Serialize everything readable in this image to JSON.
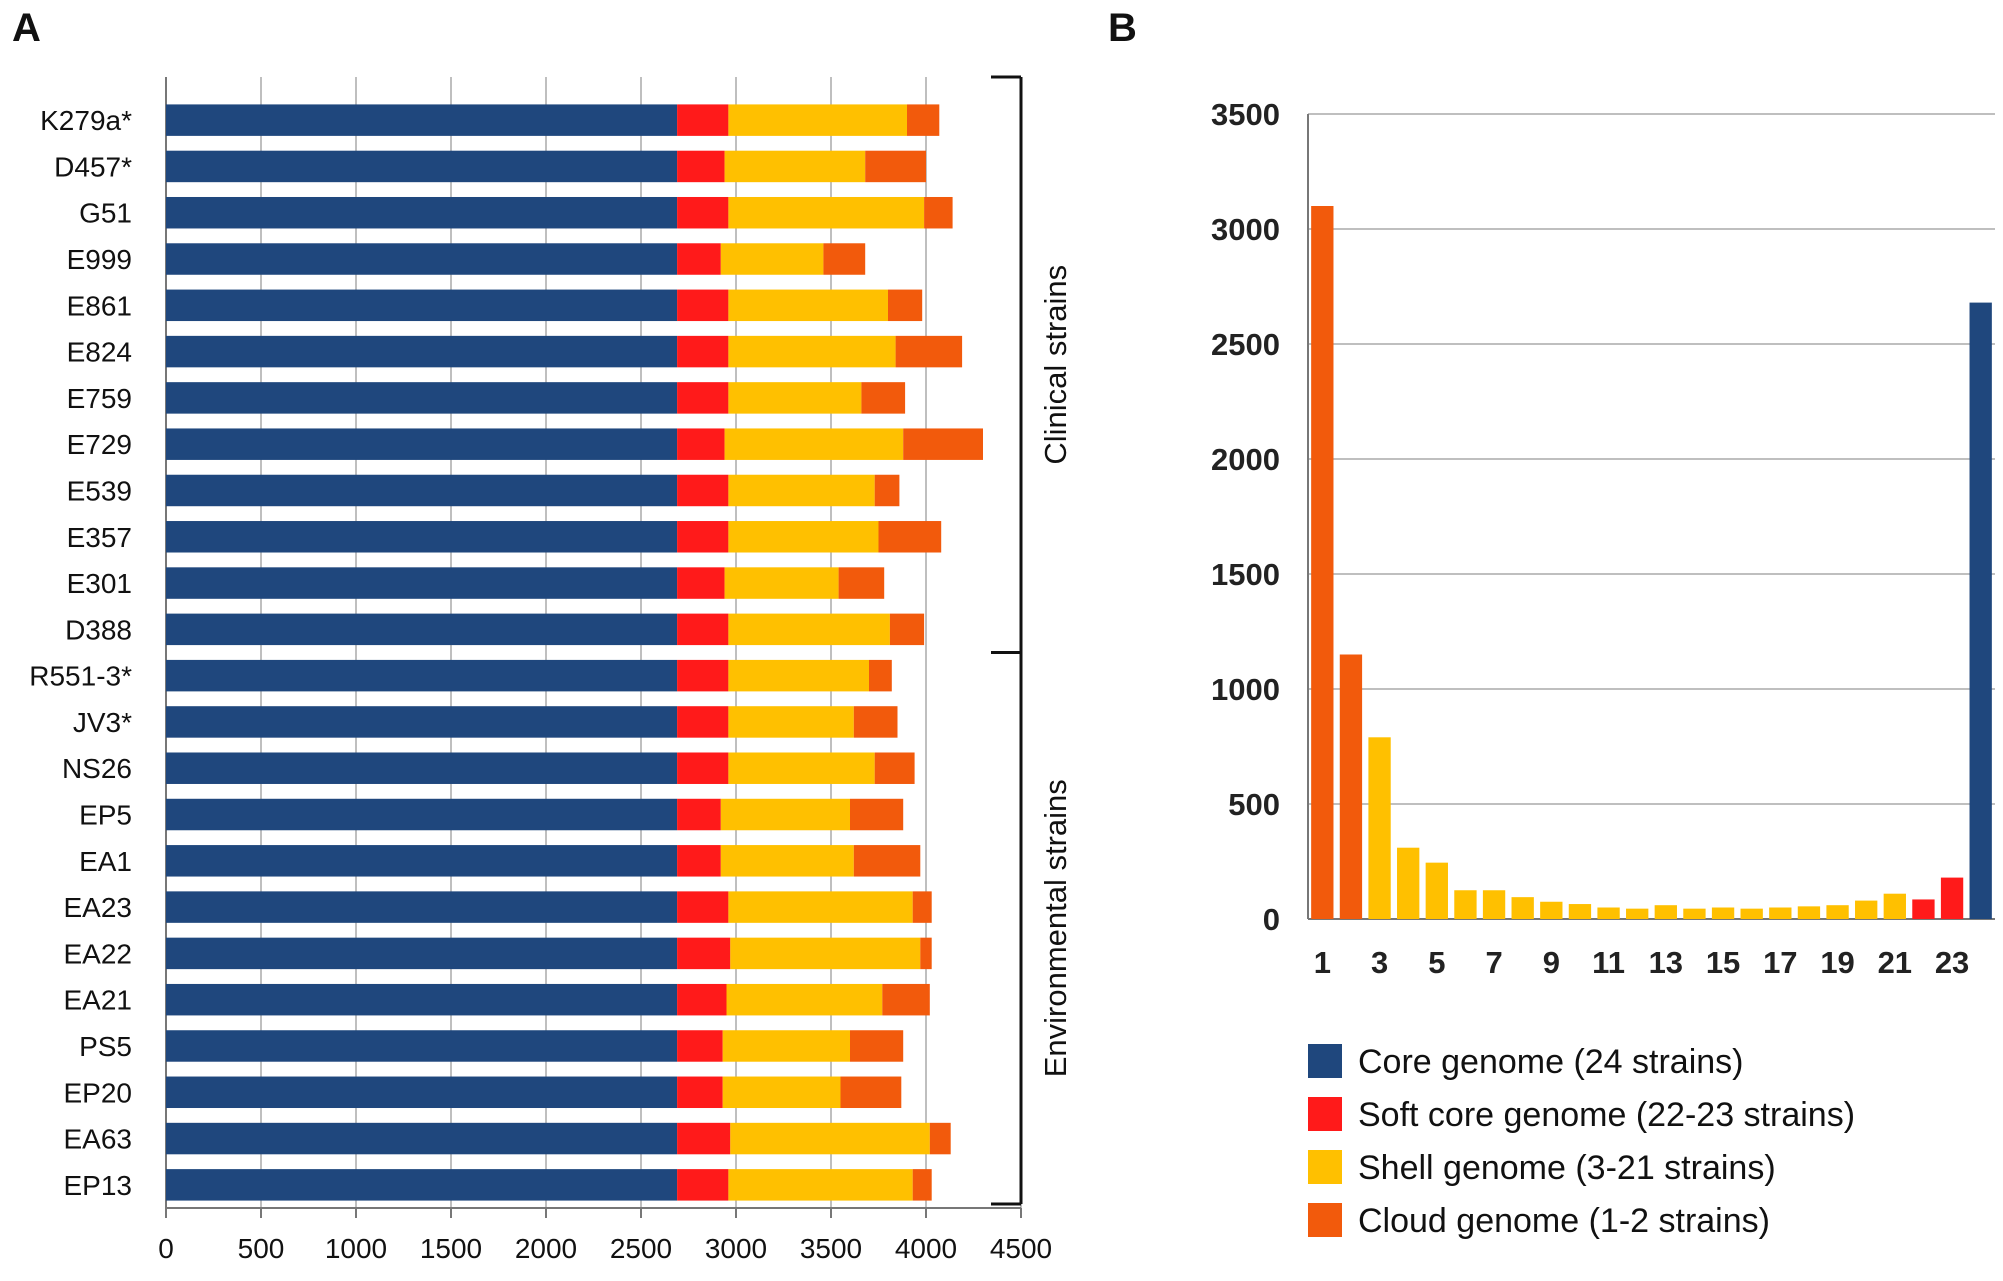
{
  "panels": {
    "a_label": "A",
    "b_label": "B"
  },
  "colors": {
    "core": "#1f477d",
    "soft_core": "#ff1a1a",
    "shell": "#ffc000",
    "cloud": "#f25a0c",
    "grid": "#bfbfbf",
    "axis": "#777777"
  },
  "chart_data": [
    {
      "panel": "A",
      "type": "bar",
      "orientation": "horizontal",
      "stacked": true,
      "categories": [
        "K279a*",
        "D457*",
        "G51",
        "E999",
        "E861",
        "E824",
        "E759",
        "E729",
        "E539",
        "E357",
        "E301",
        "D388",
        "R551-3*",
        "JV3*",
        "NS26",
        "EP5",
        "EA1",
        "EA23",
        "EA22",
        "EA21",
        "PS5",
        "EP20",
        "EA63",
        "EP13"
      ],
      "series": [
        {
          "name": "Core genome (24 strains)",
          "values": [
            2690,
            2690,
            2690,
            2690,
            2690,
            2690,
            2690,
            2690,
            2690,
            2690,
            2690,
            2690,
            2690,
            2690,
            2690,
            2690,
            2690,
            2690,
            2690,
            2690,
            2690,
            2690,
            2690,
            2690
          ]
        },
        {
          "name": "Soft core genome (22-23 strains)",
          "values": [
            270,
            250,
            270,
            230,
            270,
            270,
            270,
            250,
            270,
            270,
            250,
            270,
            270,
            270,
            270,
            230,
            230,
            270,
            280,
            260,
            240,
            240,
            280,
            270
          ]
        },
        {
          "name": "Shell genome (3-21 strains)",
          "values": [
            940,
            740,
            1030,
            540,
            840,
            880,
            700,
            940,
            770,
            790,
            600,
            850,
            740,
            660,
            770,
            680,
            700,
            970,
            1000,
            820,
            670,
            620,
            1050,
            970
          ]
        },
        {
          "name": "Cloud genome (1-2 strains)",
          "values": [
            170,
            320,
            150,
            220,
            180,
            350,
            230,
            420,
            130,
            330,
            240,
            180,
            120,
            230,
            210,
            280,
            350,
            100,
            60,
            250,
            280,
            320,
            110,
            100
          ]
        }
      ],
      "xlim": [
        0,
        4500
      ],
      "xticks": [
        0,
        500,
        1000,
        1500,
        2000,
        2500,
        3000,
        3500,
        4000,
        4500
      ],
      "groups": [
        {
          "label": "Clinical strains",
          "first": "K279a*",
          "last": "D388"
        },
        {
          "label": "Environmental strains",
          "first": "R551-3*",
          "last": "EP13"
        }
      ]
    },
    {
      "panel": "B",
      "type": "bar",
      "x": [
        1,
        2,
        3,
        4,
        5,
        6,
        7,
        8,
        9,
        10,
        11,
        12,
        13,
        14,
        15,
        16,
        17,
        18,
        19,
        20,
        21,
        22,
        23,
        24
      ],
      "values": [
        3100,
        1150,
        790,
        310,
        245,
        125,
        125,
        95,
        75,
        65,
        50,
        45,
        60,
        45,
        50,
        45,
        50,
        55,
        60,
        80,
        110,
        85,
        180,
        2680
      ],
      "categories_by_bar": [
        "cloud",
        "cloud",
        "shell",
        "shell",
        "shell",
        "shell",
        "shell",
        "shell",
        "shell",
        "shell",
        "shell",
        "shell",
        "shell",
        "shell",
        "shell",
        "shell",
        "shell",
        "shell",
        "shell",
        "shell",
        "shell",
        "soft_core",
        "soft_core",
        "core"
      ],
      "ylim": [
        0,
        3500
      ],
      "yticks": [
        0,
        500,
        1000,
        1500,
        2000,
        2500,
        3000,
        3500
      ],
      "xtick_labels": [
        "1",
        "3",
        "5",
        "7",
        "9",
        "11",
        "13",
        "15",
        "17",
        "19",
        "21",
        "23"
      ],
      "legend": [
        {
          "key": "core",
          "label": "Core genome (24 strains)"
        },
        {
          "key": "soft_core",
          "label": "Soft core genome (22-23 strains)"
        },
        {
          "key": "shell",
          "label": "Shell genome (3-21 strains)"
        },
        {
          "key": "cloud",
          "label": "Cloud genome (1-2 strains)"
        }
      ]
    }
  ]
}
